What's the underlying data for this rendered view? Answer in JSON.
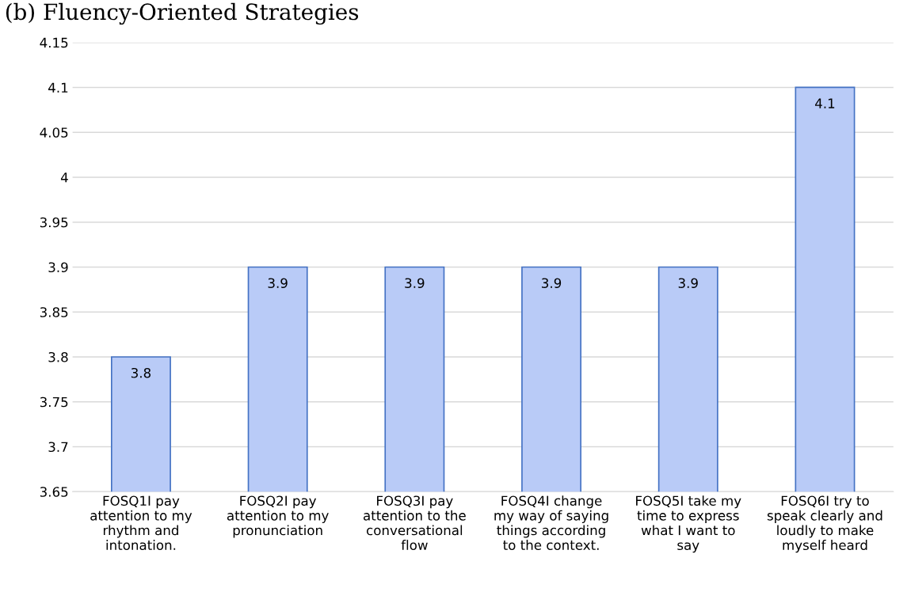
{
  "chart_data": {
    "type": "bar",
    "title": "(b) Fluency-Oriented Strategies",
    "categories": [
      "FOSQ1I pay\nattention to my\nrhythm and\nintonation.",
      "FOSQ2I pay\nattention to my\npronunciation",
      "FOSQ3I pay\nattention to the\nconversational\nflow",
      "FOSQ4I change\nmy way of saying\nthings according\nto the context.",
      "FOSQ5I take my\ntime to express\nwhat I want to\nsay",
      "FOSQ6I try to\nspeak clearly and\nloudly to make\nmyself heard"
    ],
    "values": [
      3.8,
      3.9,
      3.9,
      3.9,
      3.9,
      4.1
    ],
    "color": "#b9cbf7",
    "ylim": [
      3.65,
      4.15
    ],
    "yticks": [
      3.65,
      3.7,
      3.75,
      3.8,
      3.85,
      3.9,
      3.95,
      4,
      4.05,
      4.1,
      4.15
    ],
    "grid": "y",
    "data_labels": true
  }
}
